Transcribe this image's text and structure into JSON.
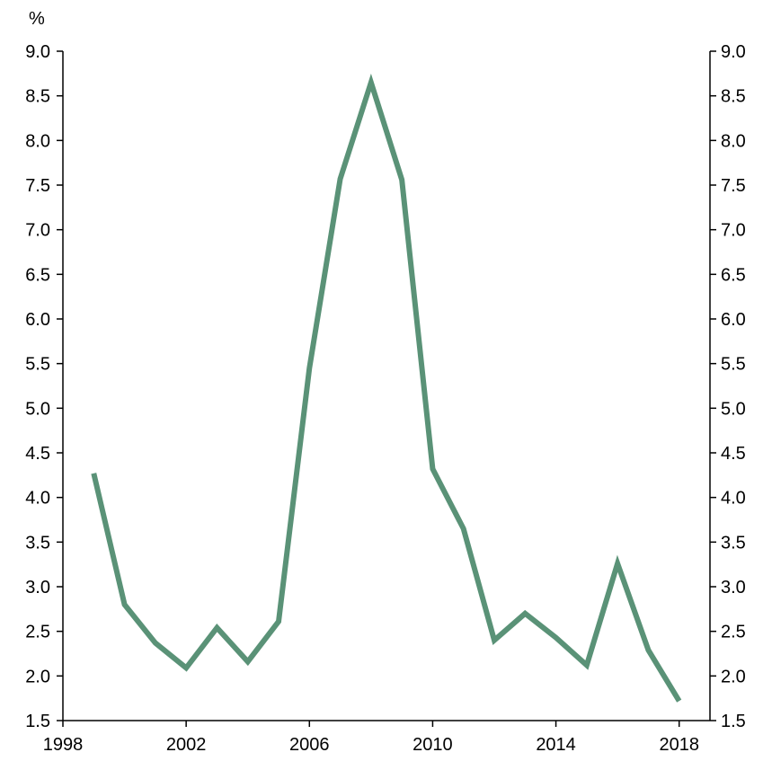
{
  "chart_data": {
    "type": "line",
    "title": "",
    "xlabel": "",
    "ylabel": "%",
    "ylabel_right": "",
    "xlim": [
      1998,
      2019
    ],
    "ylim": [
      1.5,
      9.0
    ],
    "grid": false,
    "legend": "none",
    "x_ticks": [
      1998,
      2002,
      2006,
      2010,
      2014,
      2018
    ],
    "x_tick_labels": [
      "1998",
      "2002",
      "2006",
      "2010",
      "2014",
      "2018"
    ],
    "y_ticks": [
      1.5,
      2.0,
      2.5,
      3.0,
      3.5,
      4.0,
      4.5,
      5.0,
      5.5,
      6.0,
      6.5,
      7.0,
      7.5,
      8.0,
      8.5,
      9.0
    ],
    "y_tick_labels": [
      "1.5",
      "2.0",
      "2.5",
      "3.0",
      "3.5",
      "4.0",
      "4.5",
      "5.0",
      "5.5",
      "6.0",
      "6.5",
      "7.0",
      "7.5",
      "8.0",
      "8.5",
      "9.0"
    ],
    "series": [
      {
        "color": "#5a9277",
        "x": [
          1999,
          2000,
          2001,
          2002,
          2003,
          2004,
          2005,
          2006,
          2007,
          2008,
          2009,
          2010,
          2011,
          2012,
          2013,
          2014,
          2015,
          2016,
          2017,
          2018
        ],
        "values": [
          4.27,
          2.8,
          2.37,
          2.09,
          2.54,
          2.16,
          2.61,
          5.45,
          7.57,
          8.65,
          7.56,
          4.32,
          3.65,
          2.4,
          2.7,
          2.43,
          2.12,
          3.26,
          2.29,
          1.72
        ]
      }
    ]
  }
}
